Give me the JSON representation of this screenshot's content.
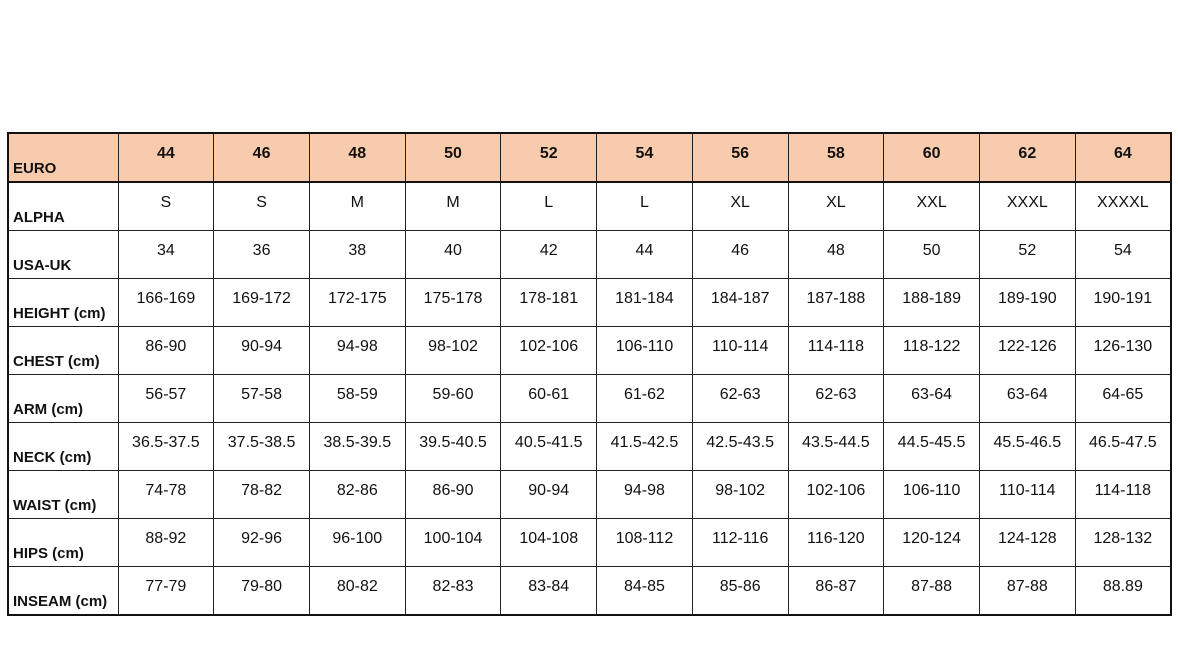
{
  "colors": {
    "header_fill": "#F8CBAD",
    "border": "#111111"
  },
  "table": {
    "rows": [
      {
        "label": "EURO",
        "values": [
          "44",
          "46",
          "48",
          "50",
          "52",
          "54",
          "56",
          "58",
          "60",
          "62",
          "64"
        ]
      },
      {
        "label": "ALPHA",
        "values": [
          "S",
          "S",
          "M",
          "M",
          "L",
          "L",
          "XL",
          "XL",
          "XXL",
          "XXXL",
          "XXXXL"
        ]
      },
      {
        "label": "USA-UK",
        "values": [
          "34",
          "36",
          "38",
          "40",
          "42",
          "44",
          "46",
          "48",
          "50",
          "52",
          "54"
        ]
      },
      {
        "label": "HEIGHT (cm)",
        "values": [
          "166-169",
          "169-172",
          "172-175",
          "175-178",
          "178-181",
          "181-184",
          "184-187",
          "187-188",
          "188-189",
          "189-190",
          "190-191"
        ]
      },
      {
        "label": "CHEST (cm)",
        "values": [
          "86-90",
          "90-94",
          "94-98",
          "98-102",
          "102-106",
          "106-110",
          "110-114",
          "114-118",
          "118-122",
          "122-126",
          "126-130"
        ]
      },
      {
        "label": "ARM (cm)",
        "values": [
          "56-57",
          "57-58",
          "58-59",
          "59-60",
          "60-61",
          "61-62",
          "62-63",
          "62-63",
          "63-64",
          "63-64",
          "64-65"
        ]
      },
      {
        "label": "NECK (cm)",
        "values": [
          "36.5-37.5",
          "37.5-38.5",
          "38.5-39.5",
          "39.5-40.5",
          "40.5-41.5",
          "41.5-42.5",
          "42.5-43.5",
          "43.5-44.5",
          "44.5-45.5",
          "45.5-46.5",
          "46.5-47.5"
        ]
      },
      {
        "label": "WAIST (cm)",
        "values": [
          "74-78",
          "78-82",
          "82-86",
          "86-90",
          "90-94",
          "94-98",
          "98-102",
          "102-106",
          "106-110",
          "110-114",
          "114-118"
        ]
      },
      {
        "label": "HIPS (cm)",
        "values": [
          "88-92",
          "92-96",
          "96-100",
          "100-104",
          "104-108",
          "108-112",
          "112-116",
          "116-120",
          "120-124",
          "124-128",
          "128-132"
        ]
      },
      {
        "label": "INSEAM (cm)",
        "values": [
          "77-79",
          "79-80",
          "80-82",
          "82-83",
          "83-84",
          "84-85",
          "85-86",
          "86-87",
          "87-88",
          "87-88",
          "88.89"
        ]
      }
    ]
  }
}
